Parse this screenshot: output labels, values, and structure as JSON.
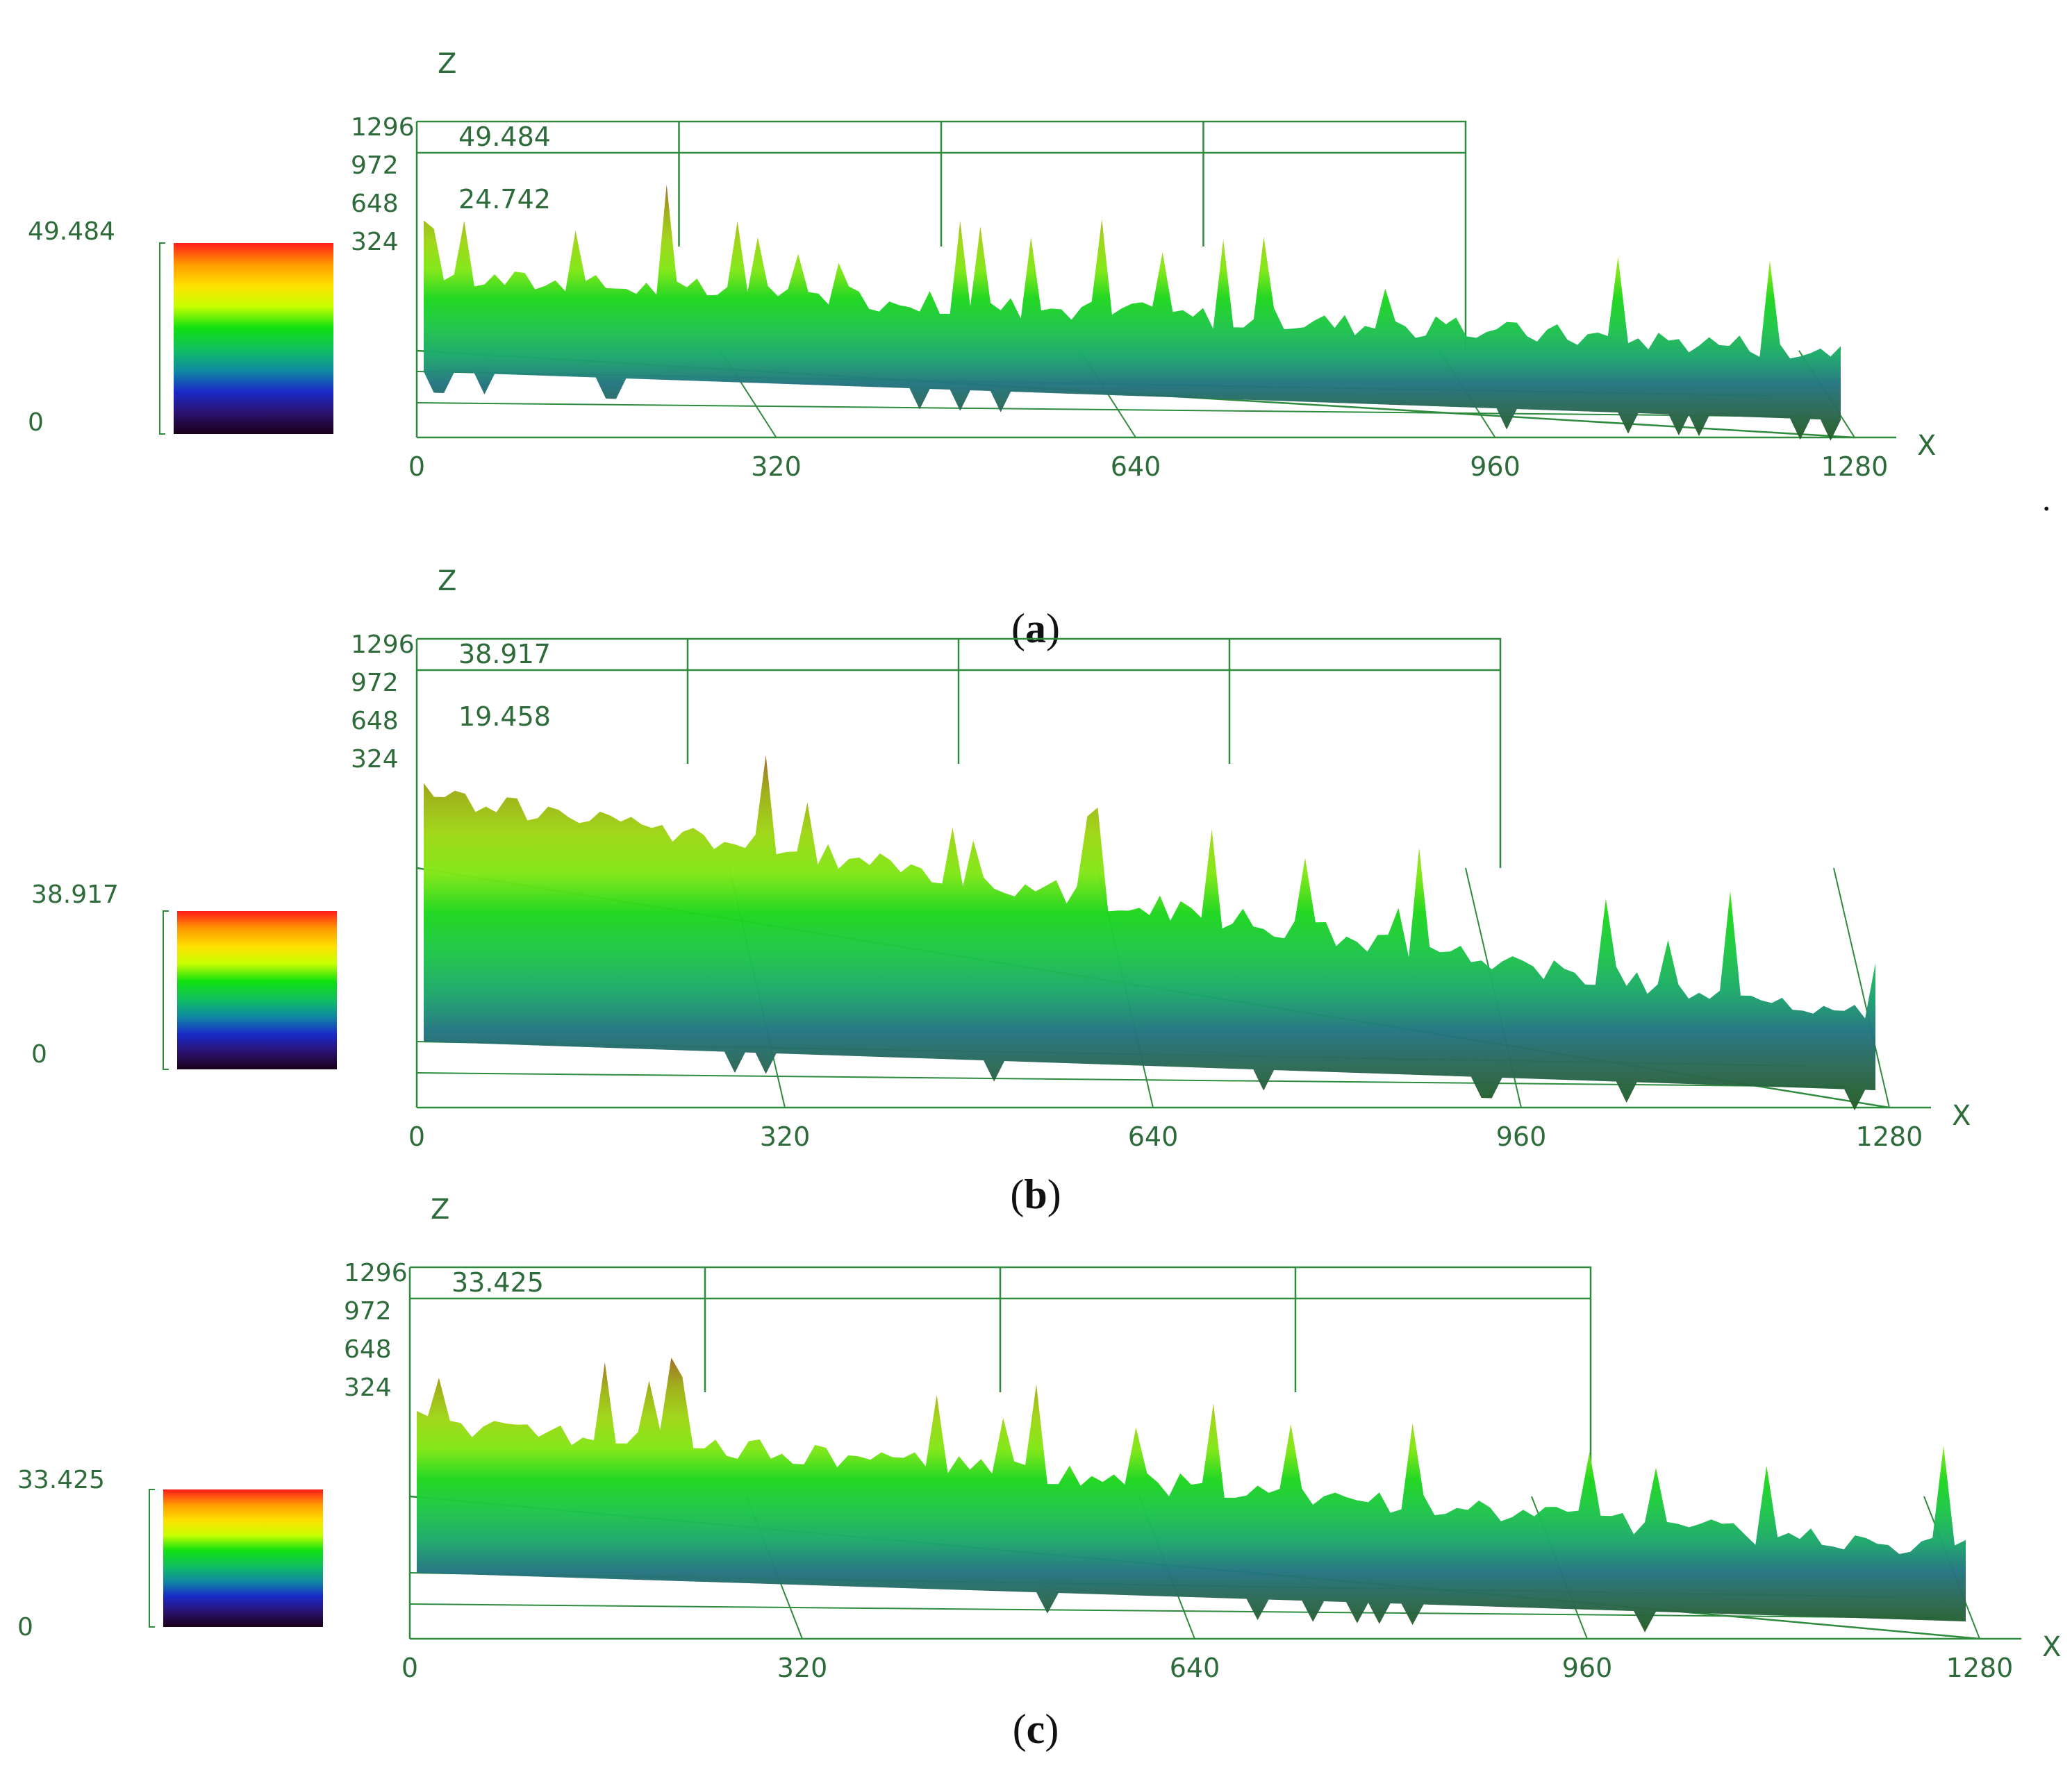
{
  "colors": {
    "axis": "#2e8b3e",
    "text": "#2e6b3a",
    "colorbar_stops": [
      "#ff1a1a",
      "#ff9a00",
      "#ffe000",
      "#c8ff00",
      "#10e010",
      "#10c060",
      "#0f8aa0",
      "#1a2ac8",
      "#2a1270",
      "#1a0018"
    ]
  },
  "chart_data": [
    {
      "type": "surface3d",
      "panel_label": "a",
      "colorbar": {
        "max": "49.484",
        "min": "0"
      },
      "z_ticks": [
        "49.484",
        "24.742"
      ],
      "y_ticks": [
        "1296",
        "972",
        "648",
        "324"
      ],
      "x_ticks": [
        "0",
        "320",
        "640",
        "960",
        "1280"
      ],
      "x_axis_label": "X",
      "z_axis_label": "Z",
      "zlim": [
        0,
        49.484
      ],
      "xlim": [
        0,
        1280
      ],
      "ylim": [
        0,
        1296
      ],
      "trailing_mark": "."
    },
    {
      "type": "surface3d",
      "panel_label": "b",
      "colorbar": {
        "max": "38.917",
        "min": "0"
      },
      "z_ticks": [
        "38.917",
        "19.458"
      ],
      "y_ticks": [
        "1296",
        "972",
        "648",
        "324"
      ],
      "x_ticks": [
        "0",
        "320",
        "640",
        "960",
        "1280"
      ],
      "x_axis_label": "X",
      "z_axis_label": "Z",
      "zlim": [
        0,
        38.917
      ],
      "xlim": [
        0,
        1280
      ],
      "ylim": [
        0,
        1296
      ]
    },
    {
      "type": "surface3d",
      "panel_label": "c",
      "colorbar": {
        "max": "33.425",
        "min": "0"
      },
      "z_ticks": [
        "33.425"
      ],
      "y_ticks": [
        "1296",
        "972",
        "648",
        "324"
      ],
      "x_ticks": [
        "0",
        "320",
        "640",
        "960",
        "1280"
      ],
      "x_axis_label": "X",
      "z_axis_label": "Z",
      "zlim": [
        0,
        33.425
      ],
      "xlim": [
        0,
        1280
      ],
      "ylim": [
        0,
        1296
      ]
    }
  ]
}
